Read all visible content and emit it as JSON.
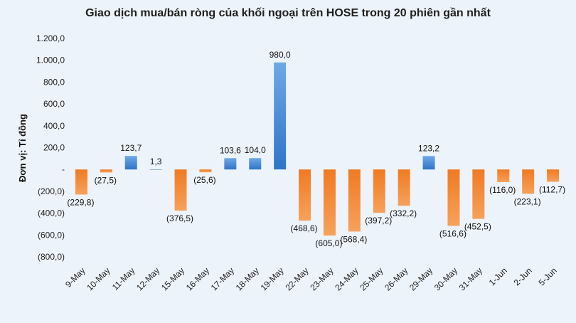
{
  "chart_data": {
    "type": "bar",
    "title": "Giao dịch mua/bán ròng của khối ngoại trên HOSE trong 20 phiên gần nhất",
    "ylabel": "Đơn vị: Tỉ đồng",
    "xlabel": "",
    "ylim": [
      -800,
      1200
    ],
    "yticks": [
      1200,
      1000,
      800,
      600,
      400,
      200,
      0,
      -200,
      -400,
      -600,
      -800
    ],
    "ytick_labels": [
      "1.200,0",
      "1.000,0",
      "800,0",
      "600,0",
      "400,0",
      "200,0",
      "-",
      "(200,0)",
      "(400,0)",
      "(600,0)",
      "(800,0)"
    ],
    "grid": false,
    "categories": [
      "9-May",
      "10-May",
      "11-May",
      "12-May",
      "15-May",
      "16-May",
      "17-May",
      "18-May",
      "19-May",
      "22-May",
      "23-May",
      "24-May",
      "25-May",
      "26-May",
      "29-May",
      "30-May",
      "31-May",
      "1-Jun",
      "2-Jun",
      "5-Jun"
    ],
    "values": [
      -229.8,
      -27.5,
      123.7,
      1.3,
      -376.5,
      -25.6,
      103.6,
      104.0,
      980.0,
      -468.6,
      -605.0,
      -568.4,
      -397.2,
      -332.2,
      123.2,
      -516.6,
      -452.5,
      -116.0,
      -223.1,
      -112.7
    ],
    "data_labels": [
      "(229,8)",
      "(27,5)",
      "123,7",
      "1,3",
      "(376,5)",
      "(25,6)",
      "103,6",
      "104,0",
      "980,0",
      "(468,6)",
      "(605,0)",
      "(568,4)",
      "(397,2)",
      "(332,2)",
      "123,2",
      "(516,6)",
      "(452,5)",
      "(116,0)",
      "(223,1)",
      "(112,7)"
    ],
    "colors": {
      "positive": "#4a8fd8",
      "positive_dark": "#2e6fbf",
      "negative": "#f28a35"
    }
  }
}
